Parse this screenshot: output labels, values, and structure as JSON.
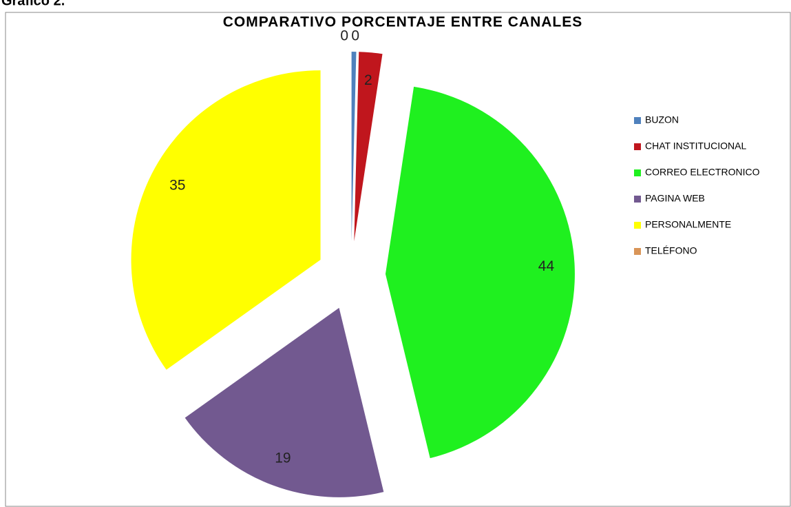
{
  "heading": "Gráfico 2.",
  "chart_data": {
    "type": "pie",
    "title": "COMPARATIVO  PORCENTAJE  ENTRE CANALES",
    "categories": [
      "BUZON",
      "CHAT INSTITUCIONAL",
      "CORREO ELECTRONICO",
      "PAGINA WEB",
      "PERSONALMENTE",
      "TELÉFONO"
    ],
    "values": [
      0.4,
      2,
      44,
      19,
      35,
      0
    ],
    "value_labels": [
      "0",
      "2",
      "44",
      "19",
      "35",
      "0"
    ],
    "colors": [
      "#4f81bd",
      "#c0161d",
      "#1ff01f",
      "#725990",
      "#ffff00",
      "#d99558"
    ],
    "legend": "right"
  }
}
